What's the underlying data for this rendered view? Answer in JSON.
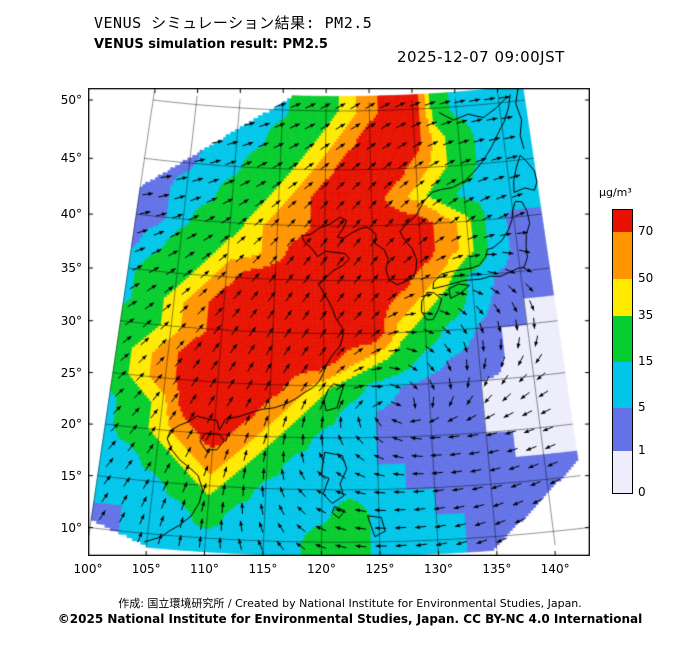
{
  "header": {
    "title_jp": "VENUS シミュレーション結果: PM2.5",
    "title_en": "VENUS simulation result: PM2.5",
    "timestamp": "2025-12-07 09:00JST"
  },
  "footer": {
    "credit": "作成: 国立環境研究所 / Created by National Institute for Environmental Studies, Japan.",
    "copyright": "©2025 National Institute for Environmental Studies, Japan. CC BY-NC 4.0 International"
  },
  "chart_data": {
    "type": "heatmap",
    "title": "VENUS simulation result: PM2.5",
    "datetime": "2025-12-07 09:00JST",
    "variable": "PM2.5",
    "units": "µg/m³",
    "grid": true,
    "lon_range": [
      100,
      143
    ],
    "lat_range": [
      8.7,
      51
    ],
    "lon_ticks": {
      "values": [
        100,
        105,
        110,
        115,
        120,
        125,
        130,
        135,
        140
      ],
      "labels": [
        "100°",
        "105°",
        "110°",
        "115°",
        "120°",
        "125°",
        "130°",
        "135°",
        "140°"
      ]
    },
    "lat_ticks": {
      "values": [
        50,
        45,
        40,
        35,
        30,
        25,
        20,
        15,
        10
      ],
      "labels": [
        "50°",
        "45°",
        "40°",
        "35°",
        "30°",
        "25°",
        "20°",
        "15°",
        "10°"
      ]
    },
    "colorbar": {
      "label": "µg/m³",
      "position": "right",
      "ticks": [
        0,
        1,
        5,
        15,
        35,
        50,
        70
      ],
      "band_colors": [
        "#ededfc",
        "#6372e6",
        "#00c6ea",
        "#07cd2e",
        "#ffea00",
        "#ff9500",
        "#e81200"
      ]
    },
    "pm25_grid": {
      "lon_start": 100,
      "lon_step": 2.5,
      "lat_start": 50,
      "lat_step": -2.5,
      "values": [
        [
          0.7,
          0.7,
          3,
          3,
          3,
          10,
          10,
          25,
          25,
          42,
          60,
          85,
          85,
          25,
          10,
          10,
          10,
          10
        ],
        [
          0.7,
          0.7,
          3,
          3,
          10,
          10,
          25,
          25,
          42,
          60,
          85,
          85,
          85,
          42,
          25,
          10,
          10,
          10
        ],
        [
          0.7,
          3,
          3,
          10,
          10,
          25,
          25,
          42,
          60,
          85,
          85,
          85,
          60,
          42,
          25,
          10,
          10,
          10
        ],
        [
          3,
          3,
          10,
          10,
          25,
          25,
          42,
          60,
          85,
          85,
          85,
          60,
          42,
          25,
          10,
          10,
          10,
          10
        ],
        [
          3,
          3,
          10,
          25,
          25,
          42,
          60,
          60,
          85,
          85,
          85,
          85,
          85,
          60,
          42,
          10,
          3,
          3
        ],
        [
          3,
          10,
          25,
          25,
          42,
          42,
          60,
          85,
          85,
          85,
          85,
          85,
          85,
          60,
          42,
          10,
          3,
          3
        ],
        [
          10,
          25,
          25,
          42,
          60,
          85,
          85,
          85,
          85,
          85,
          85,
          85,
          60,
          42,
          10,
          5,
          3,
          1
        ],
        [
          10,
          25,
          42,
          60,
          85,
          85,
          85,
          85,
          85,
          85,
          85,
          60,
          42,
          25,
          10,
          3,
          1,
          1
        ],
        [
          25,
          25,
          42,
          60,
          85,
          85,
          85,
          85,
          85,
          85,
          85,
          42,
          25,
          10,
          5,
          1,
          1,
          0.7
        ],
        [
          25,
          42,
          60,
          85,
          85,
          85,
          85,
          85,
          85,
          60,
          42,
          25,
          10,
          5,
          3,
          1,
          0.7,
          0.7
        ],
        [
          25,
          42,
          60,
          85,
          85,
          85,
          85,
          60,
          42,
          25,
          10,
          5,
          3,
          1,
          1,
          0.7,
          0.7,
          0.7
        ],
        [
          10,
          25,
          42,
          85,
          85,
          85,
          60,
          42,
          25,
          10,
          5,
          3,
          3,
          1,
          1,
          0.7,
          0.7,
          0.7
        ],
        [
          10,
          25,
          42,
          60,
          85,
          60,
          42,
          25,
          10,
          10,
          5,
          3,
          3,
          3,
          1,
          1,
          0.7,
          0.7
        ],
        [
          10,
          10,
          25,
          42,
          60,
          42,
          25,
          10,
          10,
          10,
          5,
          5,
          3,
          3,
          3,
          1,
          1,
          1
        ],
        [
          5,
          10,
          10,
          25,
          42,
          25,
          10,
          10,
          10,
          10,
          10,
          5,
          5,
          3,
          3,
          3,
          1,
          1
        ],
        [
          5,
          5,
          10,
          10,
          25,
          10,
          10,
          10,
          10,
          25,
          10,
          10,
          5,
          5,
          3,
          3,
          1,
          1
        ],
        [
          3,
          5,
          5,
          10,
          10,
          10,
          10,
          10,
          25,
          25,
          10,
          10,
          5,
          5,
          3,
          3,
          1,
          1
        ]
      ]
    },
    "wind_grid": {
      "lon_start": 100,
      "lon_step": 5,
      "lat_start": 50,
      "lat_step": -5,
      "dir_deg": [
        [
          -5,
          0,
          10,
          18,
          28,
          30,
          22,
          14,
          8
        ],
        [
          0,
          10,
          20,
          30,
          38,
          40,
          33,
          24,
          14
        ],
        [
          10,
          22,
          34,
          44,
          50,
          50,
          44,
          34,
          22
        ],
        [
          24,
          34,
          44,
          52,
          55,
          50,
          30,
          0,
          -30
        ],
        [
          34,
          44,
          52,
          56,
          55,
          40,
          -20,
          -70,
          -85
        ],
        [
          40,
          50,
          55,
          60,
          50,
          0,
          -60,
          -110,
          -140
        ],
        [
          45,
          55,
          62,
          72,
          95,
          145,
          182,
          192,
          202
        ],
        [
          50,
          60,
          72,
          95,
          150,
          175,
          186,
          196,
          206
        ],
        [
          58,
          70,
          85,
          115,
          160,
          180,
          192,
          202,
          212
        ]
      ]
    },
    "coastlines": [
      [
        [
          104.8,
          9.2
        ],
        [
          106.2,
          9.8
        ],
        [
          106.8,
          10.4
        ],
        [
          107.6,
          11.0
        ],
        [
          108.6,
          12.0
        ],
        [
          109.2,
          13.3
        ],
        [
          109.4,
          14.6
        ],
        [
          108.9,
          15.9
        ],
        [
          108.2,
          16.5
        ],
        [
          107.1,
          17.3
        ],
        [
          106.3,
          18.2
        ],
        [
          105.8,
          19.2
        ],
        [
          106.0,
          20.0
        ],
        [
          106.8,
          20.6
        ],
        [
          107.6,
          21.0
        ],
        [
          108.3,
          21.6
        ],
        [
          109.3,
          21.4
        ],
        [
          110.2,
          21.3
        ],
        [
          110.5,
          20.4
        ],
        [
          111.0,
          21.5
        ],
        [
          112.2,
          21.8
        ],
        [
          113.2,
          22.2
        ],
        [
          114.3,
          22.6
        ],
        [
          115.5,
          22.8
        ],
        [
          116.5,
          23.2
        ],
        [
          117.4,
          23.7
        ],
        [
          118.2,
          24.3
        ],
        [
          119.0,
          24.8
        ],
        [
          119.6,
          25.4
        ],
        [
          120.0,
          26.2
        ],
        [
          120.4,
          27.2
        ],
        [
          120.9,
          28.0
        ],
        [
          121.6,
          28.8
        ],
        [
          121.9,
          29.8
        ],
        [
          121.8,
          30.6
        ],
        [
          121.2,
          31.4
        ],
        [
          120.9,
          32.2
        ],
        [
          120.5,
          33.0
        ],
        [
          119.9,
          33.9
        ],
        [
          119.4,
          34.7
        ],
        [
          120.1,
          35.2
        ],
        [
          120.9,
          35.9
        ],
        [
          121.9,
          36.4
        ],
        [
          122.6,
          37.0
        ],
        [
          122.1,
          37.5
        ],
        [
          121.0,
          37.6
        ],
        [
          120.1,
          37.7
        ],
        [
          119.3,
          37.2
        ],
        [
          118.6,
          38.0
        ],
        [
          117.9,
          38.5
        ],
        [
          117.6,
          39.1
        ],
        [
          118.5,
          39.2
        ],
        [
          119.4,
          39.8
        ],
        [
          120.6,
          40.2
        ],
        [
          121.6,
          40.8
        ],
        [
          122.3,
          40.5
        ],
        [
          121.9,
          39.7
        ],
        [
          121.3,
          39.0
        ],
        [
          122.0,
          38.9
        ],
        [
          122.7,
          39.3
        ],
        [
          123.6,
          39.7
        ],
        [
          124.4,
          39.9
        ],
        [
          124.9,
          39.6
        ],
        [
          125.4,
          39.2
        ],
        [
          125.2,
          38.4
        ],
        [
          126.2,
          37.8
        ],
        [
          126.6,
          36.9
        ],
        [
          126.3,
          36.0
        ],
        [
          126.6,
          35.0
        ],
        [
          127.4,
          34.5
        ],
        [
          128.3,
          34.8
        ],
        [
          129.1,
          35.1
        ],
        [
          129.4,
          35.9
        ],
        [
          129.5,
          36.8
        ],
        [
          129.1,
          37.8
        ],
        [
          128.4,
          38.6
        ],
        [
          127.9,
          39.4
        ],
        [
          128.6,
          40.0
        ],
        [
          129.7,
          40.8
        ],
        [
          130.6,
          42.0
        ],
        [
          131.6,
          42.8
        ],
        [
          132.6,
          43.0
        ],
        [
          133.8,
          43.1
        ],
        [
          135.2,
          43.6
        ],
        [
          136.4,
          44.4
        ],
        [
          137.4,
          45.2
        ],
        [
          138.5,
          46.3
        ],
        [
          139.4,
          47.4
        ],
        [
          140.3,
          48.4
        ],
        [
          141.0,
          49.5
        ],
        [
          141.4,
          50.6
        ]
      ],
      [
        [
          130.2,
          31.1
        ],
        [
          129.7,
          31.9
        ],
        [
          129.8,
          32.9
        ],
        [
          130.4,
          33.7
        ],
        [
          131.1,
          33.6
        ],
        [
          131.8,
          33.0
        ],
        [
          131.4,
          32.0
        ],
        [
          130.8,
          31.1
        ],
        [
          130.2,
          31.1
        ]
      ],
      [
        [
          132.7,
          33.0
        ],
        [
          133.7,
          33.4
        ],
        [
          134.7,
          34.1
        ],
        [
          133.6,
          34.3
        ],
        [
          132.6,
          33.9
        ],
        [
          132.7,
          33.0
        ]
      ],
      [
        [
          131.0,
          34.0
        ],
        [
          132.2,
          34.2
        ],
        [
          133.2,
          34.4
        ],
        [
          134.3,
          34.6
        ],
        [
          135.2,
          34.6
        ],
        [
          135.9,
          34.6
        ],
        [
          136.9,
          34.8
        ],
        [
          137.9,
          34.7
        ],
        [
          138.9,
          35.0
        ],
        [
          139.8,
          35.3
        ],
        [
          140.4,
          35.3
        ],
        [
          140.9,
          36.2
        ],
        [
          140.9,
          37.2
        ],
        [
          141.1,
          38.3
        ],
        [
          141.6,
          39.3
        ],
        [
          141.5,
          40.4
        ],
        [
          141.1,
          41.3
        ],
        [
          140.4,
          41.4
        ],
        [
          140.0,
          40.6
        ],
        [
          139.8,
          39.8
        ],
        [
          139.3,
          38.9
        ],
        [
          138.5,
          38.0
        ],
        [
          137.5,
          37.4
        ],
        [
          136.9,
          37.3
        ],
        [
          136.6,
          36.6
        ],
        [
          135.9,
          35.9
        ],
        [
          135.1,
          35.7
        ],
        [
          134.0,
          35.6
        ],
        [
          132.9,
          35.5
        ],
        [
          131.9,
          35.3
        ],
        [
          131.1,
          34.6
        ],
        [
          131.0,
          34.0
        ]
      ],
      [
        [
          140.4,
          42.2
        ],
        [
          141.6,
          42.5
        ],
        [
          142.6,
          42.2
        ],
        [
          143.0,
          42.9
        ],
        [
          142.9,
          43.9
        ],
        [
          142.2,
          44.8
        ],
        [
          141.6,
          45.4
        ],
        [
          141.0,
          44.4
        ],
        [
          140.5,
          43.2
        ],
        [
          140.4,
          42.2
        ]
      ],
      [
        [
          142.1,
          45.9
        ],
        [
          141.9,
          47.1
        ],
        [
          142.3,
          48.4
        ],
        [
          141.9,
          49.8
        ],
        [
          142.4,
          51.0
        ]
      ],
      [
        [
          133.0,
          49.6
        ],
        [
          134.6,
          48.9
        ],
        [
          136.3,
          49.3
        ],
        [
          138.0,
          48.9
        ],
        [
          139.6,
          49.6
        ],
        [
          140.8,
          50.3
        ]
      ],
      [
        [
          121.0,
          25.2
        ],
        [
          121.9,
          24.9
        ],
        [
          121.3,
          22.9
        ],
        [
          120.3,
          22.6
        ],
        [
          120.1,
          23.6
        ],
        [
          120.5,
          24.7
        ],
        [
          121.0,
          25.2
        ]
      ],
      [
        [
          109.2,
          20.0
        ],
        [
          110.5,
          20.0
        ],
        [
          111.0,
          19.4
        ],
        [
          110.4,
          18.5
        ],
        [
          109.4,
          18.4
        ],
        [
          108.8,
          19.2
        ],
        [
          109.2,
          20.0
        ]
      ],
      [
        [
          120.2,
          18.6
        ],
        [
          121.8,
          18.3
        ],
        [
          122.2,
          17.0
        ],
        [
          121.6,
          15.6
        ],
        [
          121.9,
          14.4
        ],
        [
          120.9,
          13.7
        ],
        [
          120.1,
          14.6
        ],
        [
          120.6,
          16.1
        ],
        [
          119.9,
          16.4
        ],
        [
          120.2,
          18.6
        ]
      ],
      [
        [
          121.1,
          13.4
        ],
        [
          122.0,
          13.0
        ],
        [
          121.5,
          12.3
        ],
        [
          120.9,
          12.8
        ],
        [
          121.1,
          13.4
        ]
      ],
      [
        [
          124.0,
          12.5
        ],
        [
          125.2,
          12.3
        ],
        [
          125.5,
          11.0
        ],
        [
          124.6,
          10.5
        ],
        [
          124.3,
          11.5
        ],
        [
          124.0,
          12.5
        ]
      ]
    ]
  }
}
